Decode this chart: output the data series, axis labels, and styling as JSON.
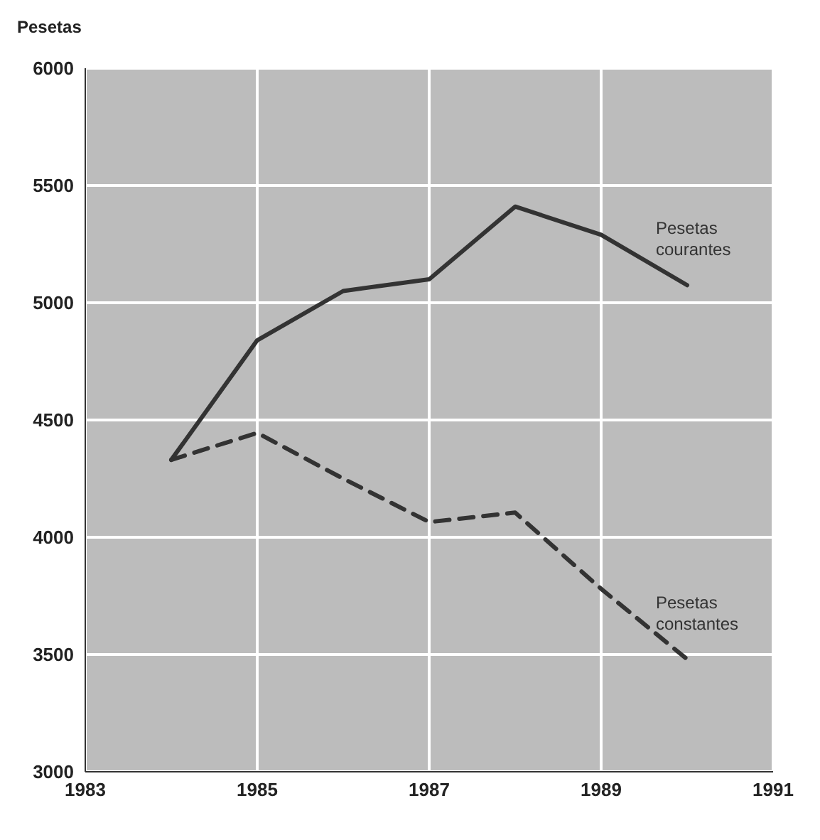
{
  "chart_data": {
    "type": "line",
    "ylabel": "Pesetas",
    "x": [
      1984,
      1985,
      1986,
      1987,
      1988,
      1989,
      1990
    ],
    "series": [
      {
        "name": "Pesetas courantes",
        "color": "#333333",
        "line_style": "solid",
        "values": [
          4330,
          4840,
          5050,
          5100,
          5410,
          5290,
          5075
        ]
      },
      {
        "name": "Pesetas constantes",
        "color": "#333333",
        "line_style": "dashed",
        "values": [
          4330,
          4445,
          4250,
          4065,
          4105,
          3780,
          3480
        ]
      }
    ],
    "xlim": [
      1983,
      1991
    ],
    "xticks": [
      1983,
      1985,
      1987,
      1989,
      1991
    ],
    "ylim": [
      3000,
      6000
    ],
    "yticks": [
      3000,
      3500,
      4000,
      4500,
      5000,
      5500,
      6000
    ],
    "grid": true,
    "marker": "none"
  }
}
